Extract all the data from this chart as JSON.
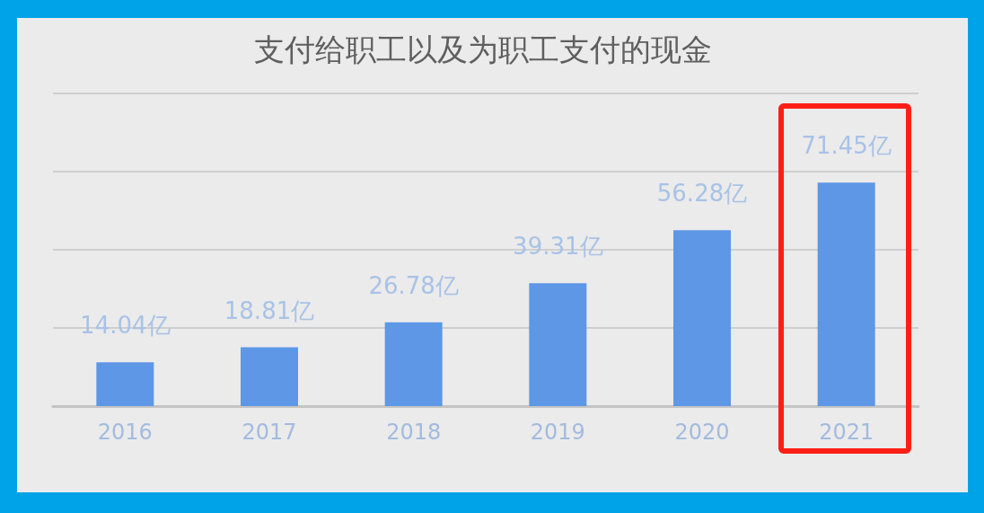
{
  "chart_data": {
    "type": "bar",
    "title": "支付给职工以及为职工支付的现金",
    "categories": [
      "2016",
      "2017",
      "2018",
      "2019",
      "2020",
      "2021"
    ],
    "values": [
      14.04,
      18.81,
      26.78,
      39.31,
      56.28,
      71.45
    ],
    "value_labels": [
      "14.04亿",
      "18.81亿",
      "26.78亿",
      "39.31亿",
      "56.28亿",
      "71.45亿"
    ],
    "color": "#5e97e6",
    "ylim": [
      0,
      100
    ],
    "yticks": [
      {
        "value": 0,
        "label": null
      },
      {
        "value": 25,
        "label": null
      },
      {
        "value": 50,
        "label": null
      },
      {
        "value": 75,
        "label": null
      },
      {
        "value": 100,
        "label": null
      }
    ],
    "grid": "y",
    "tick_labels": "x"
  }
}
